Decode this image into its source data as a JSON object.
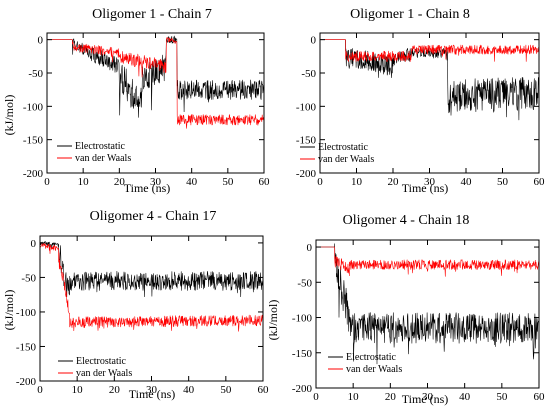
{
  "chart_data": [
    {
      "type": "line",
      "title": "Oligomer 1 - Chain 7",
      "xlabel": "Time (ns)",
      "ylabel": "(kJ/mol)",
      "xlim": [
        0,
        60
      ],
      "ylim": [
        -200,
        10
      ],
      "x_ticks": [
        0,
        10,
        20,
        30,
        40,
        50,
        60
      ],
      "y_ticks": [
        0,
        -50,
        -100,
        -150,
        -200
      ],
      "grid": false,
      "legend_position": "bottom-left",
      "series": [
        {
          "name": "Electrostatic",
          "color": "#000000",
          "seed": 7001,
          "segments": [
            {
              "x0": 0,
              "x1": 7,
              "y0": 0,
              "y1": 0,
              "noise": 0
            },
            {
              "x0": 7,
              "x1": 12,
              "y0": -5,
              "y1": -20,
              "noise": 8
            },
            {
              "x0": 12,
              "x1": 20,
              "y0": -20,
              "y1": -40,
              "noise": 12
            },
            {
              "x0": 20,
              "x1": 26,
              "y0": -50,
              "y1": -100,
              "noise": 25
            },
            {
              "x0": 26,
              "x1": 33,
              "y0": -60,
              "y1": -40,
              "noise": 20
            },
            {
              "x0": 33,
              "x1": 36,
              "y0": 0,
              "y1": 0,
              "noise": 6
            },
            {
              "x0": 36,
              "x1": 60,
              "y0": -75,
              "y1": -75,
              "noise": 15
            }
          ]
        },
        {
          "name": "van der Waals",
          "color": "#ff0000",
          "seed": 7002,
          "segments": [
            {
              "x0": 0,
              "x1": 7,
              "y0": 0,
              "y1": 0,
              "noise": 0
            },
            {
              "x0": 7,
              "x1": 20,
              "y0": -10,
              "y1": -20,
              "noise": 7
            },
            {
              "x0": 20,
              "x1": 33,
              "y0": -25,
              "y1": -40,
              "noise": 10
            },
            {
              "x0": 33,
              "x1": 36,
              "y0": 0,
              "y1": 0,
              "noise": 4
            },
            {
              "x0": 36,
              "x1": 60,
              "y0": -120,
              "y1": -120,
              "noise": 8
            }
          ]
        }
      ]
    },
    {
      "type": "line",
      "title": "Oligomer 1 - Chain 8",
      "xlabel": "Time (ns)",
      "ylabel": "",
      "xlim": [
        0,
        60
      ],
      "ylim": [
        -200,
        10
      ],
      "x_ticks": [
        0,
        10,
        20,
        30,
        40,
        50,
        60
      ],
      "y_ticks": [
        0,
        -50,
        -100,
        -150,
        -200
      ],
      "grid": false,
      "legend_position": "bottom-left",
      "series": [
        {
          "name": "Electrostatic",
          "color": "#000000",
          "seed": 8001,
          "segments": [
            {
              "x0": 0,
              "x1": 7,
              "y0": 0,
              "y1": 0,
              "noise": 0
            },
            {
              "x0": 7,
              "x1": 20,
              "y0": -25,
              "y1": -40,
              "noise": 15
            },
            {
              "x0": 20,
              "x1": 25,
              "y0": -30,
              "y1": -20,
              "noise": 10
            },
            {
              "x0": 25,
              "x1": 35,
              "y0": -20,
              "y1": -20,
              "noise": 8
            },
            {
              "x0": 35,
              "x1": 60,
              "y0": -85,
              "y1": -80,
              "noise": 25
            }
          ]
        },
        {
          "name": "van der Waals",
          "color": "#ff0000",
          "seed": 8002,
          "segments": [
            {
              "x0": 0,
              "x1": 7,
              "y0": 0,
              "y1": 0,
              "noise": 0
            },
            {
              "x0": 7,
              "x1": 25,
              "y0": -25,
              "y1": -25,
              "noise": 8
            },
            {
              "x0": 25,
              "x1": 60,
              "y0": -15,
              "y1": -15,
              "noise": 7
            }
          ]
        }
      ]
    },
    {
      "type": "line",
      "title": "Oligomer 4 - Chain 17",
      "xlabel": "Time (ns)",
      "ylabel": "(kJ/mol)",
      "xlim": [
        0,
        60
      ],
      "ylim": [
        -200,
        10
      ],
      "x_ticks": [
        0,
        10,
        20,
        30,
        40,
        50,
        60
      ],
      "y_ticks": [
        0,
        -50,
        -100,
        -150,
        -200
      ],
      "grid": false,
      "legend_position": "bottom-right",
      "series": [
        {
          "name": "Electrostatic",
          "color": "#000000",
          "seed": 17001,
          "segments": [
            {
              "x0": 0,
              "x1": 5,
              "y0": 0,
              "y1": -3,
              "noise": 3
            },
            {
              "x0": 5,
              "x1": 8,
              "y0": -10,
              "y1": -80,
              "noise": 20
            },
            {
              "x0": 8,
              "x1": 60,
              "y0": -55,
              "y1": -55,
              "noise": 14
            }
          ]
        },
        {
          "name": "van der Waals",
          "color": "#ff0000",
          "seed": 17002,
          "segments": [
            {
              "x0": 0,
              "x1": 5,
              "y0": -3,
              "y1": -8,
              "noise": 4
            },
            {
              "x0": 5,
              "x1": 8,
              "y0": -20,
              "y1": -100,
              "noise": 10
            },
            {
              "x0": 8,
              "x1": 60,
              "y0": -115,
              "y1": -112,
              "noise": 8
            }
          ]
        }
      ]
    },
    {
      "type": "line",
      "title": "Oligomer 4 - Chain 18",
      "xlabel": "Time (ns)",
      "ylabel": "(kJ/mol)",
      "xlim": [
        0,
        60
      ],
      "ylim": [
        -200,
        10
      ],
      "x_ticks": [
        0,
        10,
        20,
        30,
        40,
        50,
        60
      ],
      "y_ticks": [
        0,
        -50,
        -100,
        -150,
        -200
      ],
      "grid": false,
      "legend_position": "bottom-left",
      "series": [
        {
          "name": "Electrostatic",
          "color": "#000000",
          "seed": 18001,
          "segments": [
            {
              "x0": 0,
              "x1": 5,
              "y0": 0,
              "y1": 0,
              "noise": 0
            },
            {
              "x0": 5,
              "x1": 9,
              "y0": -20,
              "y1": -100,
              "noise": 25
            },
            {
              "x0": 9,
              "x1": 60,
              "y0": -115,
              "y1": -115,
              "noise": 22
            }
          ]
        },
        {
          "name": "van der Waals",
          "color": "#ff0000",
          "seed": 18002,
          "segments": [
            {
              "x0": 0,
              "x1": 5,
              "y0": 0,
              "y1": 0,
              "noise": 0
            },
            {
              "x0": 5,
              "x1": 9,
              "y0": -20,
              "y1": -30,
              "noise": 8
            },
            {
              "x0": 9,
              "x1": 60,
              "y0": -25,
              "y1": -25,
              "noise": 7
            }
          ]
        }
      ]
    }
  ]
}
